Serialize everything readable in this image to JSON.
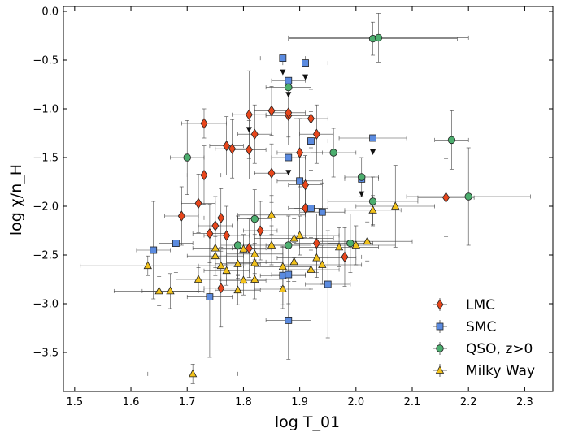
{
  "chart_data": {
    "type": "scatter",
    "xlabel": "log T_01",
    "ylabel": "log χ/n_H",
    "xlim": [
      1.48,
      2.35
    ],
    "ylim": [
      -3.9,
      0.05
    ],
    "xticks": [
      "1.5",
      "1.6",
      "1.7",
      "1.8",
      "1.9",
      "2.0",
      "2.1",
      "2.2",
      "2.3"
    ],
    "xtick_values": [
      1.5,
      1.6,
      1.7,
      1.8,
      1.9,
      2.0,
      2.1,
      2.2,
      2.3
    ],
    "yticks": [
      "0.0",
      "−0.5",
      "−1.0",
      "−1.5",
      "−2.0",
      "−2.5",
      "−3.0",
      "−3.5"
    ],
    "ytick_values": [
      0.0,
      -0.5,
      -1.0,
      -1.5,
      -2.0,
      -2.5,
      -3.0,
      -3.5
    ],
    "legend_position": "bottom-right",
    "series": [
      {
        "name": "LMC",
        "marker": "diamond",
        "color": "#e8461b",
        "points": [
          {
            "x": 1.73,
            "y": -1.15,
            "xe": 0.04,
            "ye": 0.15
          },
          {
            "x": 1.81,
            "y": -1.06,
            "xe": 0.03,
            "ye": 0.45
          },
          {
            "x": 1.85,
            "y": -1.02,
            "xe": 0.03,
            "ye": 0.25
          },
          {
            "x": 1.88,
            "y": -1.07,
            "xe": 0.04,
            "ye": 0.3
          },
          {
            "x": 1.88,
            "y": -1.04,
            "xe": 0.03,
            "ye": 0.25
          },
          {
            "x": 1.92,
            "y": -1.1,
            "xe": 0.03,
            "ye": 0.3
          },
          {
            "x": 1.93,
            "y": -1.26,
            "xe": 0.03,
            "ye": 0.3
          },
          {
            "x": 1.82,
            "y": -1.26,
            "xe": 0.03,
            "ye": 0.3
          },
          {
            "x": 1.77,
            "y": -1.38,
            "xe": 0.03,
            "ye": 0.3
          },
          {
            "x": 1.78,
            "y": -1.41,
            "xe": 0.03,
            "ye": 0.3
          },
          {
            "x": 1.81,
            "y": -1.42,
            "xe": 0.03,
            "ye": 0.3
          },
          {
            "x": 1.9,
            "y": -1.45,
            "xe": 0.04,
            "ye": 0.35
          },
          {
            "x": 1.73,
            "y": -1.68,
            "xe": 0.03,
            "ye": 0.3
          },
          {
            "x": 1.85,
            "y": -1.66,
            "xe": 0.03,
            "ye": 0.3
          },
          {
            "x": 1.91,
            "y": -1.78,
            "xe": 0.03,
            "ye": 0.3
          },
          {
            "x": 1.72,
            "y": -1.97,
            "xe": 0.03,
            "ye": 0.3
          },
          {
            "x": 1.69,
            "y": -2.1,
            "xe": 0.03,
            "ye": 0.3
          },
          {
            "x": 1.76,
            "y": -2.12,
            "xe": 0.03,
            "ye": 0.3
          },
          {
            "x": 1.91,
            "y": -2.02,
            "xe": 0.03,
            "ye": 0.3
          },
          {
            "x": 1.75,
            "y": -2.2,
            "xe": 0.03,
            "ye": 0.3
          },
          {
            "x": 1.74,
            "y": -2.28,
            "xe": 0.03,
            "ye": 0.3
          },
          {
            "x": 1.83,
            "y": -2.25,
            "xe": 0.03,
            "ye": 0.3
          },
          {
            "x": 1.77,
            "y": -2.3,
            "xe": 0.04,
            "ye": 0.3
          },
          {
            "x": 1.81,
            "y": -2.43,
            "xe": 0.03,
            "ye": 0.3
          },
          {
            "x": 1.93,
            "y": -2.38,
            "xe": 0.04,
            "ye": 0.3
          },
          {
            "x": 1.98,
            "y": -2.52,
            "xe": 0.03,
            "ye": 0.3
          },
          {
            "x": 1.76,
            "y": -2.84,
            "xe": 0.03,
            "ye": 0.4
          },
          {
            "x": 2.16,
            "y": -1.91,
            "xe": 0.05,
            "ye": 0.4
          }
        ]
      },
      {
        "name": "SMC",
        "marker": "square",
        "color": "#5b8be0",
        "points": [
          {
            "x": 1.87,
            "y": -0.48,
            "xe": 0.04,
            "ye": 0.0
          },
          {
            "x": 1.91,
            "y": -0.53,
            "xe": 0.04,
            "ye": 0.0
          },
          {
            "x": 1.88,
            "y": -0.71,
            "xe": 0.03,
            "ye": 0.0
          },
          {
            "x": 1.88,
            "y": -1.5,
            "xe": 0.03,
            "ye": 0.0
          },
          {
            "x": 1.92,
            "y": -1.33,
            "xe": 0.03,
            "ye": 0.3
          },
          {
            "x": 2.03,
            "y": -1.3,
            "xe": 0.06,
            "ye": 0.0
          },
          {
            "x": 2.01,
            "y": -1.72,
            "xe": 0.03,
            "ye": 0.0
          },
          {
            "x": 1.9,
            "y": -1.74,
            "xe": 0.04,
            "ye": 0.3
          },
          {
            "x": 1.92,
            "y": -2.02,
            "xe": 0.03,
            "ye": 0.3
          },
          {
            "x": 1.94,
            "y": -2.06,
            "xe": 0.04,
            "ye": 0.3
          },
          {
            "x": 1.64,
            "y": -2.45,
            "xe": 0.03,
            "ye": 0.5
          },
          {
            "x": 1.68,
            "y": -2.38,
            "xe": 0.03,
            "ye": 0.3
          },
          {
            "x": 1.87,
            "y": -2.71,
            "xe": 0.04,
            "ye": 0.3
          },
          {
            "x": 1.88,
            "y": -2.7,
            "xe": 0.03,
            "ye": 0.3
          },
          {
            "x": 1.95,
            "y": -2.8,
            "xe": 0.04,
            "ye": 0.55
          },
          {
            "x": 1.74,
            "y": -2.93,
            "xe": 0.04,
            "ye": 0.62
          },
          {
            "x": 1.88,
            "y": -3.17,
            "xe": 0.04,
            "ye": 0.4
          }
        ]
      },
      {
        "name": "QSO, z>0",
        "marker": "circle",
        "color": "#4cae6e",
        "points": [
          {
            "x": 2.03,
            "y": -0.28,
            "xe": 0.15,
            "ye": 0.17
          },
          {
            "x": 2.04,
            "y": -0.27,
            "xe": 0.16,
            "ye": 0.25
          },
          {
            "x": 1.88,
            "y": -0.78,
            "xe": 0.04,
            "ye": 0.1
          },
          {
            "x": 1.7,
            "y": -1.5,
            "xe": 0.03,
            "ye": 0.38
          },
          {
            "x": 1.96,
            "y": -1.45,
            "xe": 0.04,
            "ye": 0.25
          },
          {
            "x": 2.17,
            "y": -1.32,
            "xe": 0.03,
            "ye": 0.3
          },
          {
            "x": 2.01,
            "y": -1.7,
            "xe": 0.03,
            "ye": 0.2
          },
          {
            "x": 2.03,
            "y": -1.95,
            "xe": 0.08,
            "ye": 0.25
          },
          {
            "x": 2.2,
            "y": -1.9,
            "xe": 0.11,
            "ye": 0.5
          },
          {
            "x": 1.82,
            "y": -2.13,
            "xe": 0.03,
            "ye": 0.3
          },
          {
            "x": 1.79,
            "y": -2.4,
            "xe": 0.03,
            "ye": 0.3
          },
          {
            "x": 1.88,
            "y": -2.4,
            "xe": 0.04,
            "ye": 0.3
          },
          {
            "x": 1.99,
            "y": -2.38,
            "xe": 0.04,
            "ye": 0.3
          }
        ]
      },
      {
        "name": "Milky Way",
        "marker": "triangle",
        "color": "#f2c21b",
        "points": [
          {
            "x": 1.71,
            "y": -3.72,
            "xe": 0.08,
            "ye": 0.1
          },
          {
            "x": 1.63,
            "y": -2.61,
            "xe": 0.12,
            "ye": 0.1
          },
          {
            "x": 1.65,
            "y": -2.87,
            "xe": 0.08,
            "ye": 0.15
          },
          {
            "x": 1.67,
            "y": -2.87,
            "xe": 0.05,
            "ye": 0.18
          },
          {
            "x": 1.72,
            "y": -2.75,
            "xe": 0.04,
            "ye": 0.12
          },
          {
            "x": 1.75,
            "y": -2.43,
            "xe": 0.04,
            "ye": 0.2
          },
          {
            "x": 1.75,
            "y": -2.51,
            "xe": 0.05,
            "ye": 0.2
          },
          {
            "x": 1.76,
            "y": -2.61,
            "xe": 0.04,
            "ye": 0.15
          },
          {
            "x": 1.77,
            "y": -2.66,
            "xe": 0.04,
            "ye": 0.15
          },
          {
            "x": 1.79,
            "y": -2.59,
            "xe": 0.04,
            "ye": 0.15
          },
          {
            "x": 1.79,
            "y": -2.86,
            "xe": 0.04,
            "ye": 0.15
          },
          {
            "x": 1.8,
            "y": -2.76,
            "xe": 0.04,
            "ye": 0.15
          },
          {
            "x": 1.8,
            "y": -2.44,
            "xe": 0.05,
            "ye": 0.15
          },
          {
            "x": 1.82,
            "y": -2.58,
            "xe": 0.05,
            "ye": 0.2
          },
          {
            "x": 1.82,
            "y": -2.49,
            "xe": 0.05,
            "ye": 0.2
          },
          {
            "x": 1.82,
            "y": -2.75,
            "xe": 0.05,
            "ye": 0.2
          },
          {
            "x": 1.85,
            "y": -2.09,
            "xe": 0.06,
            "ye": 0.2
          },
          {
            "x": 1.85,
            "y": -2.4,
            "xe": 0.05,
            "ye": 0.2
          },
          {
            "x": 1.87,
            "y": -2.62,
            "xe": 0.05,
            "ye": 0.2
          },
          {
            "x": 1.87,
            "y": -2.85,
            "xe": 0.05,
            "ye": 0.2
          },
          {
            "x": 1.89,
            "y": -2.57,
            "xe": 0.05,
            "ye": 0.2
          },
          {
            "x": 1.89,
            "y": -2.33,
            "xe": 0.07,
            "ye": 0.2
          },
          {
            "x": 1.9,
            "y": -2.3,
            "xe": 0.07,
            "ye": 0.2
          },
          {
            "x": 1.92,
            "y": -2.65,
            "xe": 0.05,
            "ye": 0.2
          },
          {
            "x": 1.93,
            "y": -2.53,
            "xe": 0.07,
            "ye": 0.2
          },
          {
            "x": 1.94,
            "y": -2.6,
            "xe": 0.07,
            "ye": 0.2
          },
          {
            "x": 1.97,
            "y": -2.42,
            "xe": 0.07,
            "ye": 0.2
          },
          {
            "x": 2.0,
            "y": -2.4,
            "xe": 0.07,
            "ye": 0.2
          },
          {
            "x": 2.02,
            "y": -2.36,
            "xe": 0.08,
            "ye": 0.2
          },
          {
            "x": 2.03,
            "y": -2.04,
            "xe": 0.05,
            "ye": 0.15
          },
          {
            "x": 2.07,
            "y": -2.0,
            "xe": 0.07,
            "ye": 0.42
          }
        ]
      }
    ],
    "upper_limits": [
      {
        "x": 1.87,
        "y": -0.63
      },
      {
        "x": 1.91,
        "y": -0.68
      },
      {
        "x": 1.88,
        "y": -0.86
      },
      {
        "x": 1.81,
        "y": -1.22
      },
      {
        "x": 2.03,
        "y": -1.45
      },
      {
        "x": 1.88,
        "y": -1.66
      },
      {
        "x": 2.01,
        "y": -1.88
      }
    ]
  }
}
